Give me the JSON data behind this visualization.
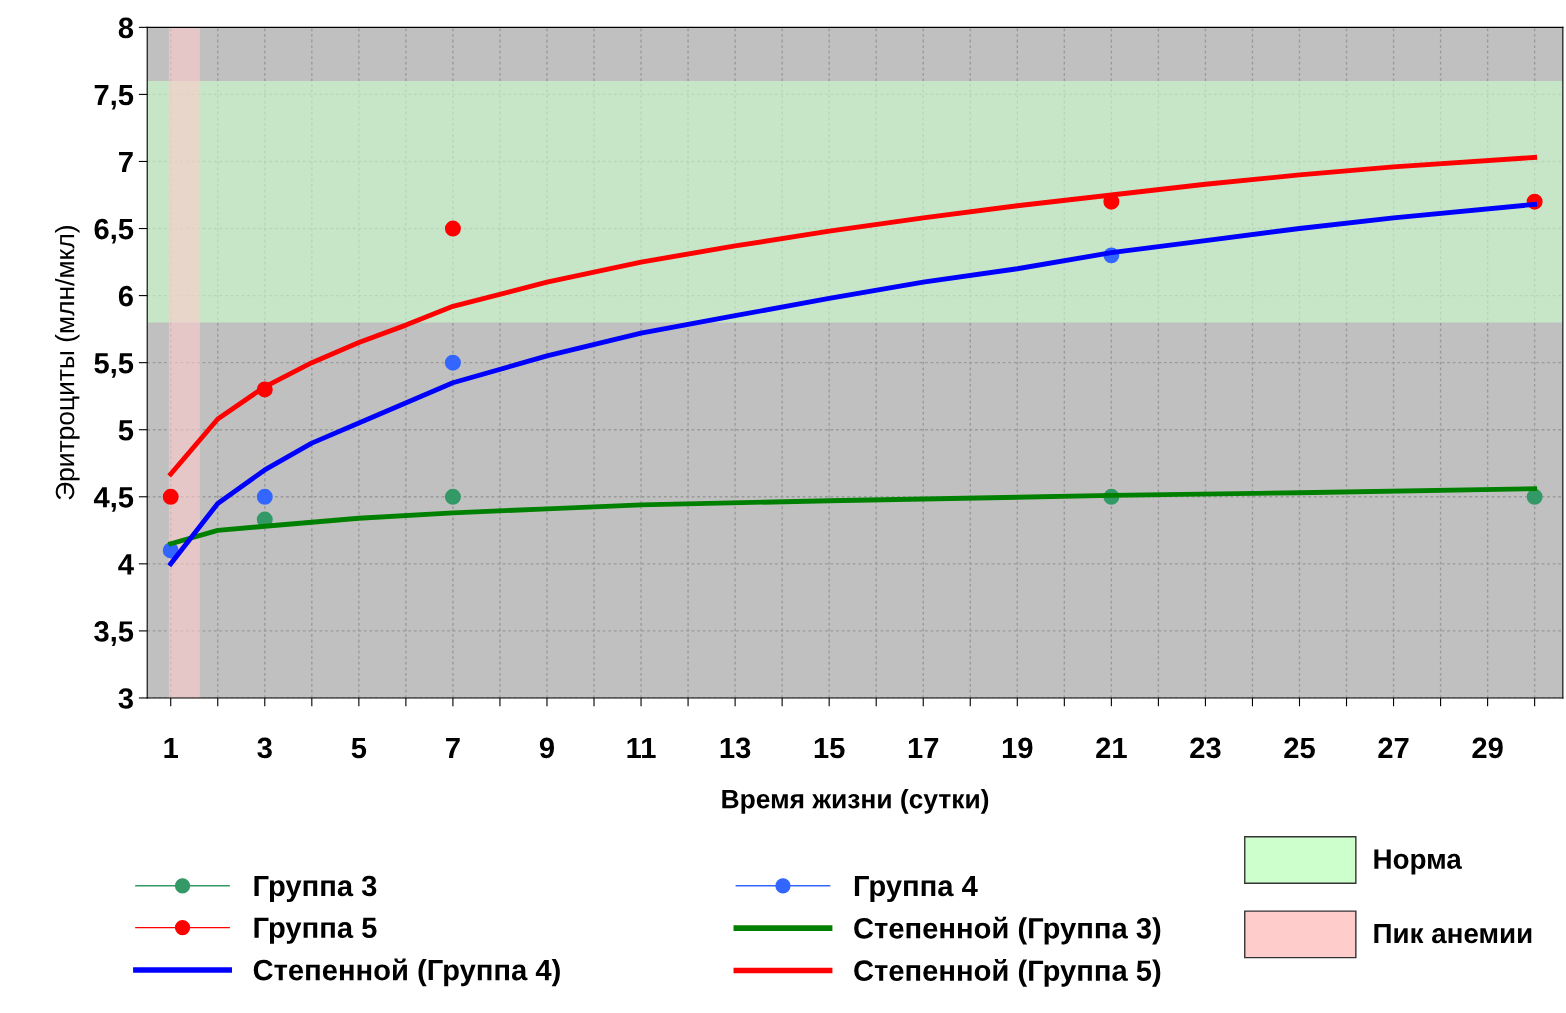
{
  "chart_data": {
    "type": "scatter",
    "xlabel": "Время жизни (сутки)",
    "ylabel": "Эритроциты (млн/мкл)",
    "xlim": [
      0.5,
      30.6
    ],
    "ylim": [
      3,
      8
    ],
    "xticks": [
      1,
      {
        "value": 2,
        "label": null
      },
      3,
      {
        "value": 4,
        "label": null
      },
      5,
      {
        "value": 6,
        "label": null
      },
      7,
      {
        "value": 8,
        "label": null
      },
      9,
      {
        "value": 10,
        "label": null
      },
      11,
      {
        "value": 12,
        "label": null
      },
      13,
      {
        "value": 14,
        "label": null
      },
      15,
      {
        "value": 16,
        "label": null
      },
      17,
      {
        "value": 18,
        "label": null
      },
      19,
      {
        "value": 20,
        "label": null
      },
      21,
      {
        "value": 22,
        "label": null
      },
      23,
      {
        "value": 24,
        "label": null
      },
      25,
      {
        "value": 26,
        "label": null
      },
      27,
      {
        "value": 28,
        "label": null
      },
      29,
      {
        "value": 30,
        "label": null
      }
    ],
    "yticks": [
      3,
      {
        "value": 3.5,
        "label": "3,5"
      },
      4,
      {
        "value": 4.5,
        "label": "4,5"
      },
      5,
      {
        "value": 5.5,
        "label": "5,5"
      },
      6,
      {
        "value": 6.5,
        "label": "6,5"
      },
      7,
      {
        "value": 7.5,
        "label": "7,5"
      },
      8
    ],
    "grid": true,
    "legend": "bottom",
    "bands": [
      {
        "axis": "y",
        "from": 5.8,
        "to": 7.6,
        "label": "Норма",
        "color": "#ccffcc"
      },
      {
        "axis": "x",
        "from": 0.96,
        "to": 1.62,
        "label": "Пик анемии",
        "color": "#ffcccc"
      }
    ],
    "series": [
      {
        "name": "Группа 3",
        "marker": "circle",
        "color": "#339966",
        "x": [
          3,
          7,
          21,
          30
        ],
        "values": [
          4.33,
          4.5,
          4.5,
          4.5
        ]
      },
      {
        "name": "Группа 4",
        "marker": "circle",
        "color": "#3366ff",
        "x": [
          1,
          3,
          7,
          21
        ],
        "values": [
          4.1,
          4.5,
          5.5,
          6.3
        ]
      },
      {
        "name": "Группа 5",
        "marker": "circle",
        "color": "#ff0000",
        "x": [
          1,
          3,
          7,
          21,
          30
        ],
        "values": [
          4.5,
          5.3,
          6.5,
          6.7,
          6.7
        ]
      },
      {
        "name": "Степенной (Группа 3)",
        "type": "line",
        "color": "#008000",
        "x": [
          1,
          2,
          3,
          5,
          7,
          9,
          11,
          15,
          21,
          25,
          30
        ],
        "values": [
          4.15,
          4.25,
          4.28,
          4.34,
          4.38,
          4.41,
          4.44,
          4.47,
          4.51,
          4.53,
          4.56
        ]
      },
      {
        "name": "Степенной (Группа 4)",
        "type": "line",
        "color": "#0000ff",
        "x": [
          1,
          2,
          3,
          4,
          5,
          7,
          9,
          11,
          13,
          15,
          17,
          19,
          21,
          23,
          25,
          27,
          30
        ],
        "values": [
          4.0,
          4.45,
          4.7,
          4.9,
          5.05,
          5.35,
          5.55,
          5.72,
          5.85,
          5.98,
          6.1,
          6.2,
          6.32,
          6.41,
          6.5,
          6.58,
          6.68
        ]
      },
      {
        "name": "Степенной (Группа 5)",
        "type": "line",
        "color": "#ff0000",
        "x": [
          1,
          2,
          3,
          4,
          5,
          6,
          7,
          9,
          11,
          13,
          15,
          17,
          19,
          21,
          23,
          25,
          27,
          30
        ],
        "values": [
          4.67,
          5.08,
          5.32,
          5.5,
          5.65,
          5.78,
          5.92,
          6.1,
          6.25,
          6.37,
          6.48,
          6.58,
          6.67,
          6.75,
          6.83,
          6.9,
          6.96,
          7.03
        ]
      }
    ]
  }
}
